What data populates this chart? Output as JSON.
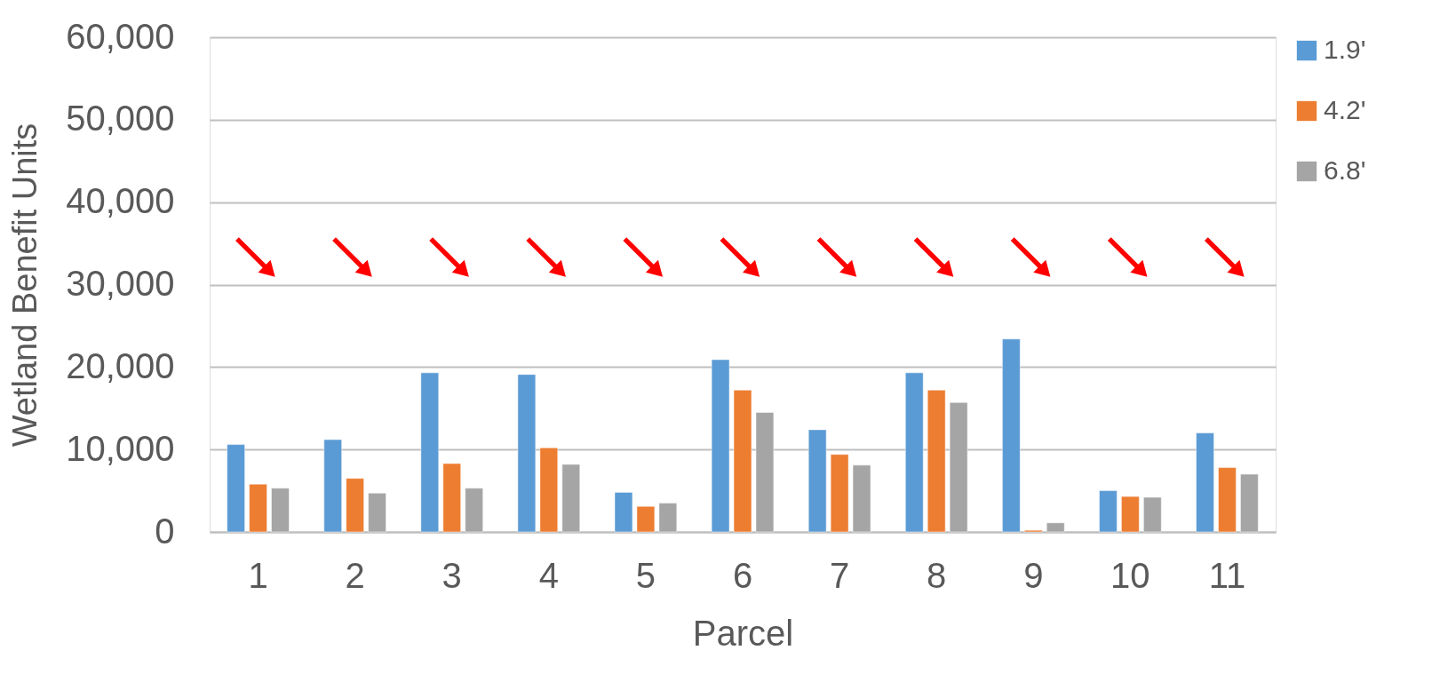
{
  "chart_data": {
    "type": "bar",
    "xlabel": "Parcel",
    "ylabel": "Wetland Benefit Units",
    "categories": [
      "1",
      "2",
      "3",
      "4",
      "5",
      "6",
      "7",
      "8",
      "9",
      "10",
      "11"
    ],
    "series": [
      {
        "name": "1.9'",
        "color": "#5b9bd5",
        "values": [
          10600,
          11200,
          19300,
          19100,
          4800,
          20900,
          12400,
          19300,
          23400,
          5000,
          12000
        ]
      },
      {
        "name": "4.2'",
        "color": "#ed7d31",
        "values": [
          5800,
          6500,
          8300,
          10200,
          3100,
          17200,
          9400,
          17200,
          200,
          4300,
          7800
        ]
      },
      {
        "name": "6.8'",
        "color": "#a5a5a5",
        "values": [
          5300,
          4700,
          5300,
          8200,
          3500,
          14500,
          8100,
          15700,
          1100,
          4200,
          7000
        ]
      }
    ],
    "ylim": [
      0,
      60000
    ],
    "yticks": [
      {
        "value": 0,
        "label": "0"
      },
      {
        "value": 10000,
        "label": "10,000"
      },
      {
        "value": 20000,
        "label": "20,000"
      },
      {
        "value": 30000,
        "label": "30,000"
      },
      {
        "value": 40000,
        "label": "40,000"
      },
      {
        "value": 50000,
        "label": "50,000"
      },
      {
        "value": 60000,
        "label": "60,000"
      }
    ],
    "grid": "y",
    "legend": "right"
  }
}
